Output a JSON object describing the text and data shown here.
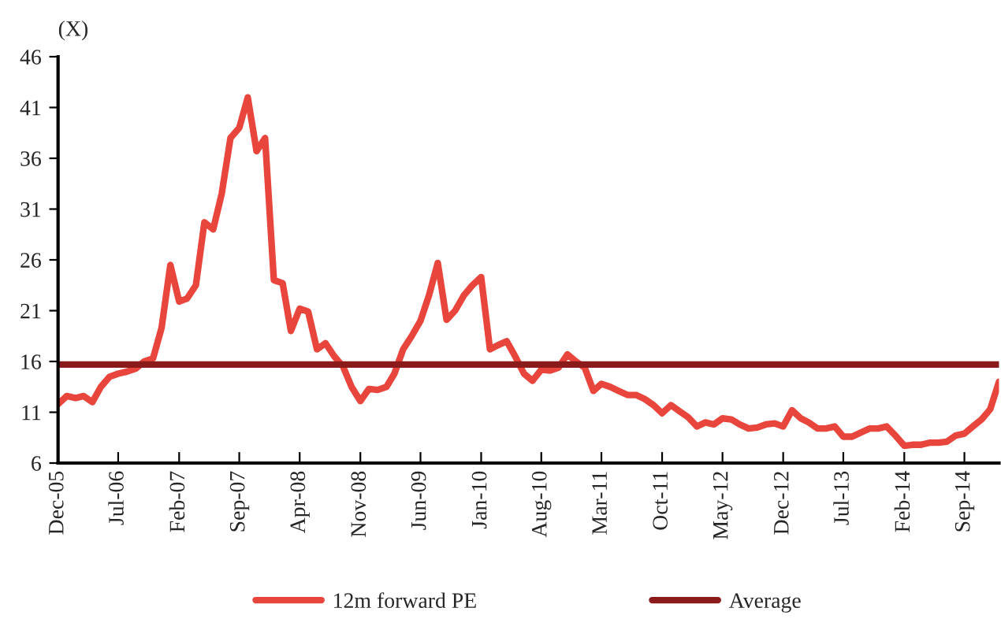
{
  "chart_data": {
    "type": "line",
    "ylabel": "(X)",
    "x": [
      "2005-12",
      "2006-01",
      "2006-02",
      "2006-03",
      "2006-04",
      "2006-05",
      "2006-06",
      "2006-07",
      "2006-08",
      "2006-09",
      "2006-10",
      "2006-11",
      "2006-12",
      "2007-01",
      "2007-02",
      "2007-03",
      "2007-04",
      "2007-05",
      "2007-06",
      "2007-07",
      "2007-08",
      "2007-09",
      "2007-10",
      "2007-11",
      "2007-12",
      "2008-01",
      "2008-02",
      "2008-03",
      "2008-04",
      "2008-05",
      "2008-06",
      "2008-07",
      "2008-08",
      "2008-09",
      "2008-10",
      "2008-11",
      "2008-12",
      "2009-01",
      "2009-02",
      "2009-03",
      "2009-04",
      "2009-05",
      "2009-06",
      "2009-07",
      "2009-08",
      "2009-09",
      "2009-10",
      "2009-11",
      "2009-12",
      "2010-01",
      "2010-02",
      "2010-03",
      "2010-04",
      "2010-05",
      "2010-06",
      "2010-07",
      "2010-08",
      "2010-09",
      "2010-10",
      "2010-11",
      "2010-12",
      "2011-01",
      "2011-02",
      "2011-03",
      "2011-04",
      "2011-05",
      "2011-06",
      "2011-07",
      "2011-08",
      "2011-09",
      "2011-10",
      "2011-11",
      "2011-12",
      "2012-01",
      "2012-02",
      "2012-03",
      "2012-04",
      "2012-05",
      "2012-06",
      "2012-07",
      "2012-08",
      "2012-09",
      "2012-10",
      "2012-11",
      "2012-12",
      "2013-01",
      "2013-02",
      "2013-03",
      "2013-04",
      "2013-05",
      "2013-06",
      "2013-07",
      "2013-08",
      "2013-09",
      "2013-10",
      "2013-11",
      "2013-12",
      "2014-01",
      "2014-02",
      "2014-03",
      "2014-04",
      "2014-05",
      "2014-06",
      "2014-07",
      "2014-08",
      "2014-09",
      "2014-10",
      "2014-11",
      "2014-12",
      "2015-01"
    ],
    "series": [
      {
        "name": "12m forward PE",
        "color": "#e8453c",
        "values": [
          11.8,
          12.6,
          12.4,
          12.6,
          12.0,
          13.5,
          14.5,
          14.8,
          15.0,
          15.3,
          16.0,
          16.3,
          19.3,
          25.5,
          21.9,
          22.2,
          23.5,
          29.7,
          29.0,
          32.5,
          38.0,
          39.0,
          42.0,
          36.7,
          38.0,
          24.0,
          23.7,
          19.0,
          21.2,
          20.9,
          17.2,
          17.8,
          16.5,
          15.5,
          13.5,
          12.1,
          13.3,
          13.2,
          13.5,
          14.8,
          17.2,
          18.5,
          20.0,
          22.5,
          25.7,
          20.1,
          21.0,
          22.5,
          23.5,
          24.3,
          17.2,
          17.6,
          18.0,
          16.5,
          14.8,
          14.1,
          15.2,
          15.1,
          15.4,
          16.7,
          16.0,
          15.4,
          13.1,
          13.8,
          13.5,
          13.1,
          12.7,
          12.7,
          12.3,
          11.7,
          10.9,
          11.7,
          11.1,
          10.5,
          9.6,
          10.0,
          9.8,
          10.4,
          10.3,
          9.8,
          9.4,
          9.5,
          9.8,
          9.9,
          9.6,
          11.2,
          10.4,
          10.0,
          9.4,
          9.4,
          9.6,
          8.6,
          8.6,
          9.0,
          9.4,
          9.4,
          9.6,
          8.7,
          7.7,
          7.8,
          7.8,
          8.0,
          8.0,
          8.1,
          8.7,
          8.9,
          9.6,
          10.3,
          11.3,
          14.0
        ]
      }
    ],
    "ref_lines": [
      {
        "axis": "y",
        "value": 15.7,
        "label": "Average",
        "color": "#8b1a1a"
      }
    ],
    "xlim": [
      "2005-12",
      "2015-01"
    ],
    "xticks": [
      {
        "value": "2005-12",
        "label": "Dec-05"
      },
      {
        "value": "2006-07",
        "label": "Jul-06"
      },
      {
        "value": "2007-02",
        "label": "Feb-07"
      },
      {
        "value": "2007-09",
        "label": "Sep-07"
      },
      {
        "value": "2008-04",
        "label": "Apr-08"
      },
      {
        "value": "2008-11",
        "label": "Nov-08"
      },
      {
        "value": "2009-06",
        "label": "Jun-09"
      },
      {
        "value": "2010-01",
        "label": "Jan-10"
      },
      {
        "value": "2010-08",
        "label": "Aug-10"
      },
      {
        "value": "2011-03",
        "label": "Mar-11"
      },
      {
        "value": "2011-10",
        "label": "Oct-11"
      },
      {
        "value": "2012-05",
        "label": "May-12"
      },
      {
        "value": "2012-12",
        "label": "Dec-12"
      },
      {
        "value": "2013-07",
        "label": "Jul-13"
      },
      {
        "value": "2014-02",
        "label": "Feb-14"
      },
      {
        "value": "2014-09",
        "label": "Sep-14"
      }
    ],
    "ylim": [
      6,
      46
    ],
    "yticks": [
      6,
      11,
      16,
      21,
      26,
      31,
      36,
      41,
      46
    ],
    "grid": false,
    "legend": "bottom",
    "marker": "none",
    "line_style": "solid"
  }
}
